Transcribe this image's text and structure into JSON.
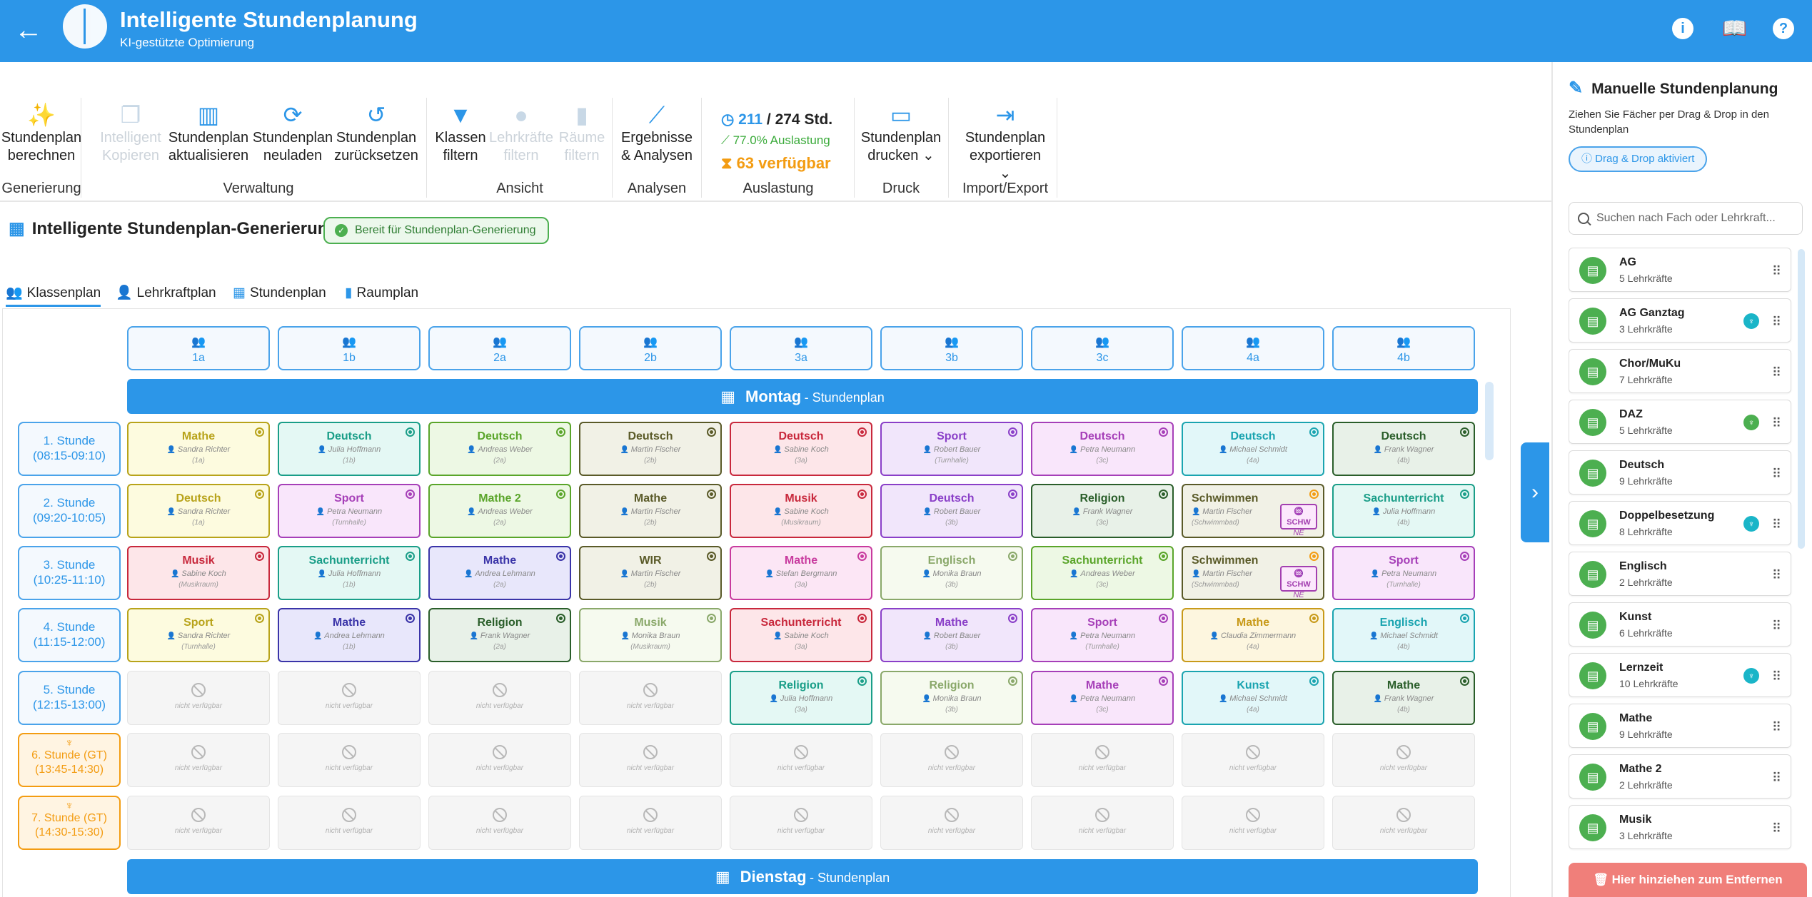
{
  "header": {
    "title": "Intelligente Stundenplanung",
    "subtitle": "KI-gestützte Optimierung"
  },
  "ribbon": {
    "buttons": [
      {
        "l1": "Stundenplan",
        "l2": "berechnen",
        "icon": "magic-wand-icon",
        "glyph": "✨",
        "disabled": false
      },
      {
        "l1": "Intelligent",
        "l2": "Kopieren",
        "icon": "copy-icon",
        "glyph": "❐",
        "disabled": true
      },
      {
        "l1": "Stundenplan",
        "l2": "aktualisieren",
        "icon": "columns-icon",
        "glyph": "▥",
        "disabled": false
      },
      {
        "l1": "Stundenplan",
        "l2": "neuladen",
        "icon": "sync-icon",
        "glyph": "⟳",
        "disabled": false
      },
      {
        "l1": "Stundenplan",
        "l2": "zurücksetzen",
        "icon": "undo-icon",
        "glyph": "↺",
        "disabled": false
      },
      {
        "l1": "Klassen",
        "l2": "filtern",
        "icon": "filter-icon",
        "glyph": "▼",
        "disabled": false
      },
      {
        "l1": "Lehrkräfte",
        "l2": "filtern",
        "icon": "person-icon",
        "glyph": "●",
        "disabled": true
      },
      {
        "l1": "Räume",
        "l2": "filtern",
        "icon": "door-icon",
        "glyph": "▮",
        "disabled": true
      },
      {
        "l1": "Ergebnisse",
        "l2": "& Analysen",
        "icon": "chart-line-icon",
        "glyph": "⟋",
        "disabled": false
      },
      {
        "l1": "Stundenplan",
        "l2": "drucken ⌄",
        "icon": "print-icon",
        "glyph": "▭",
        "disabled": false
      },
      {
        "l1": "Stundenplan",
        "l2": "exportieren ⌄",
        "icon": "export-icon",
        "glyph": "⇥",
        "disabled": false
      }
    ],
    "groups": [
      "Generierung",
      "Verwaltung",
      "Ansicht",
      "Analysen",
      "Auslastung",
      "Druck",
      "Import/Export"
    ],
    "stats": {
      "scheduled": "211",
      "total": "/ 274 Std.",
      "utilization": "77.0% Auslastung",
      "available": "63 verfügbar"
    }
  },
  "section": {
    "title": "Intelligente Stundenplan-Generierung",
    "status": "Bereit für Stundenplan-Generierung"
  },
  "tabs": [
    "Klassenplan",
    "Lehrkraftplan",
    "Stundenplan",
    "Raumplan"
  ],
  "classes": [
    "1a",
    "1b",
    "2a",
    "2b",
    "3a",
    "3b",
    "3c",
    "4a",
    "4b"
  ],
  "days": [
    {
      "name": "Montag",
      "suffix": "- Stundenplan"
    },
    {
      "name": "Dienstag",
      "suffix": "- Stundenplan"
    }
  ],
  "periods": [
    {
      "name": "1. Stunde",
      "time": "(08:15-09:10)",
      "gt": false
    },
    {
      "name": "2. Stunde",
      "time": "(09:20-10:05)",
      "gt": false
    },
    {
      "name": "3. Stunde",
      "time": "(10:25-11:10)",
      "gt": false
    },
    {
      "name": "4. Stunde",
      "time": "(11:15-12:00)",
      "gt": false
    },
    {
      "name": "5. Stunde",
      "time": "(12:15-13:00)",
      "gt": false
    },
    {
      "name": "6. Stunde (GT)",
      "time": "(13:45-14:30)",
      "gt": true
    },
    {
      "name": "7. Stunde (GT)",
      "time": "(14:30-15:30)",
      "gt": true
    }
  ],
  "na_label": "nicht verfügbar",
  "schedule": [
    [
      {
        "s": "Mathe",
        "t": "Sandra Richter",
        "r": "(1a)",
        "c": "#b8a31a",
        "bg": "#fdfbdf"
      },
      {
        "s": "Deutsch",
        "t": "Julia Hoffmann",
        "r": "(1b)",
        "c": "#1a9e88",
        "bg": "#e4f8f4"
      },
      {
        "s": "Deutsch",
        "t": "Andreas Weber",
        "r": "(2a)",
        "c": "#5aa52a",
        "bg": "#edf8e4"
      },
      {
        "s": "Deutsch",
        "t": "Martin Fischer",
        "r": "(2b)",
        "c": "#5a5a28",
        "bg": "#f1f1e6"
      },
      {
        "s": "Deutsch",
        "t": "Sabine Koch",
        "r": "(3a)",
        "c": "#c8283c",
        "bg": "#fde6e9"
      },
      {
        "s": "Sport",
        "t": "Robert Bauer",
        "r": "(Turnhalle)",
        "c": "#8a3fc8",
        "bg": "#f1e6fb"
      },
      {
        "s": "Deutsch",
        "t": "Petra Neumann",
        "r": "(3c)",
        "c": "#a63fb8",
        "bg": "#f9e6fb"
      },
      {
        "s": "Deutsch",
        "t": "Michael Schmidt",
        "r": "(4a)",
        "c": "#1aa4b0",
        "bg": "#e2f7f9"
      },
      {
        "s": "Deutsch",
        "t": "Frank Wagner",
        "r": "(4b)",
        "c": "#2a5e2a",
        "bg": "#e8f1e8"
      }
    ],
    [
      {
        "s": "Deutsch",
        "t": "Sandra Richter",
        "r": "(1a)",
        "c": "#b8a31a",
        "bg": "#fdfbdf"
      },
      {
        "s": "Sport",
        "t": "Petra Neumann",
        "r": "(Turnhalle)",
        "c": "#a63fb8",
        "bg": "#f9e6fb"
      },
      {
        "s": "Mathe 2",
        "t": "Andreas Weber",
        "r": "(2a)",
        "c": "#5aa52a",
        "bg": "#edf8e4"
      },
      {
        "s": "Mathe",
        "t": "Martin Fischer",
        "r": "(2b)",
        "c": "#5a5a28",
        "bg": "#f1f1e6"
      },
      {
        "s": "Musik",
        "t": "Sabine Koch",
        "r": "(Musikraum)",
        "c": "#c8283c",
        "bg": "#fde6e9"
      },
      {
        "s": "Deutsch",
        "t": "Robert Bauer",
        "r": "(3b)",
        "c": "#8a3fc8",
        "bg": "#f1e6fb"
      },
      {
        "s": "Religion",
        "t": "Frank Wagner",
        "r": "(3c)",
        "c": "#2a5e2a",
        "bg": "#e8f1e8"
      },
      {
        "s": "Schwimmen",
        "t": "Martin Fischer",
        "r": "(Schwimmbad)",
        "c": "#5a5a28",
        "bg": "#f1f1e6",
        "schw": true
      },
      {
        "s": "Sachunterricht",
        "t": "Julia Hoffmann",
        "r": "(4b)",
        "c": "#1a9e88",
        "bg": "#e4f8f4"
      }
    ],
    [
      {
        "s": "Musik",
        "t": "Sabine Koch",
        "r": "(Musikraum)",
        "c": "#c8283c",
        "bg": "#fde6e9"
      },
      {
        "s": "Sachunterricht",
        "t": "Julia Hoffmann",
        "r": "(1b)",
        "c": "#1a9e88",
        "bg": "#e4f8f4"
      },
      {
        "s": "Mathe",
        "t": "Andrea Lehmann",
        "r": "(2a)",
        "c": "#3a34a8",
        "bg": "#e8e7fb"
      },
      {
        "s": "WIR",
        "t": "Martin Fischer",
        "r": "(2b)",
        "c": "#5a5a28",
        "bg": "#f1f1e6"
      },
      {
        "s": "Mathe",
        "t": "Stefan Bergmann",
        "r": "(3a)",
        "c": "#c83a9e",
        "bg": "#fce6f5"
      },
      {
        "s": "Englisch",
        "t": "Monika Braun",
        "r": "(3b)",
        "c": "#8aa86a",
        "bg": "#f6faef"
      },
      {
        "s": "Sachunterricht",
        "t": "Andreas Weber",
        "r": "(3c)",
        "c": "#5aa52a",
        "bg": "#edf8e4"
      },
      {
        "s": "Schwimmen",
        "t": "Martin Fischer",
        "r": "(Schwimmbad)",
        "c": "#5a5a28",
        "bg": "#f1f1e6",
        "schw": true
      },
      {
        "s": "Sport",
        "t": "Petra Neumann",
        "r": "(Turnhalle)",
        "c": "#a63fb8",
        "bg": "#f9e6fb"
      }
    ],
    [
      {
        "s": "Sport",
        "t": "Sandra Richter",
        "r": "(Turnhalle)",
        "c": "#b8a31a",
        "bg": "#fdfbdf"
      },
      {
        "s": "Mathe",
        "t": "Andrea Lehmann",
        "r": "(1b)",
        "c": "#3a34a8",
        "bg": "#e8e7fb"
      },
      {
        "s": "Religion",
        "t": "Frank Wagner",
        "r": "(2a)",
        "c": "#2a5e2a",
        "bg": "#e8f1e8"
      },
      {
        "s": "Musik",
        "t": "Monika Braun",
        "r": "(Musikraum)",
        "c": "#8aa86a",
        "bg": "#f6faef"
      },
      {
        "s": "Sachunterricht",
        "t": "Sabine Koch",
        "r": "(3a)",
        "c": "#c8283c",
        "bg": "#fde6e9"
      },
      {
        "s": "Mathe",
        "t": "Robert Bauer",
        "r": "(3b)",
        "c": "#8a3fc8",
        "bg": "#f1e6fb"
      },
      {
        "s": "Sport",
        "t": "Petra Neumann",
        "r": "(Turnhalle)",
        "c": "#a63fb8",
        "bg": "#f9e6fb"
      },
      {
        "s": "Mathe",
        "t": "Claudia Zimmermann",
        "r": "(4a)",
        "c": "#c89a1a",
        "bg": "#fdf6df"
      },
      {
        "s": "Englisch",
        "t": "Michael Schmidt",
        "r": "(4b)",
        "c": "#1aa4b0",
        "bg": "#e2f7f9"
      }
    ],
    [
      null,
      null,
      null,
      null,
      {
        "s": "Religion",
        "t": "Julia Hoffmann",
        "r": "(3a)",
        "c": "#1a9e88",
        "bg": "#e4f8f4"
      },
      {
        "s": "Religion",
        "t": "Monika Braun",
        "r": "(3b)",
        "c": "#8aa86a",
        "bg": "#f6faef"
      },
      {
        "s": "Mathe",
        "t": "Petra Neumann",
        "r": "(3c)",
        "c": "#a63fb8",
        "bg": "#f9e6fb"
      },
      {
        "s": "Kunst",
        "t": "Michael Schmidt",
        "r": "(4a)",
        "c": "#1aa4b0",
        "bg": "#e2f7f9"
      },
      {
        "s": "Mathe",
        "t": "Frank Wagner",
        "r": "(4b)",
        "c": "#2a5e2a",
        "bg": "#e8f1e8"
      }
    ],
    [
      null,
      null,
      null,
      null,
      null,
      null,
      null,
      null,
      null
    ],
    [
      null,
      null,
      null,
      null,
      null,
      null,
      null,
      null,
      null
    ]
  ],
  "schw_badge": {
    "label": "SCHW",
    "sub": "NE"
  },
  "sidebar": {
    "title": "Manuelle Stundenplanung",
    "description": "Ziehen Sie Fächer per Drag & Drop in den Stundenplan",
    "dragdrop": "Drag & Drop aktiviert",
    "search_placeholder": "Suchen nach Fach oder Lehrkraft...",
    "subjects": [
      {
        "name": "AG",
        "count": "5 Lehrkräfte",
        "badge": null
      },
      {
        "name": "AG Ganztag",
        "count": "3 Lehrkräfte",
        "badge": "#1ab5c8"
      },
      {
        "name": "Chor/MuKu",
        "count": "7 Lehrkräfte",
        "badge": null
      },
      {
        "name": "DAZ",
        "count": "5 Lehrkräfte",
        "badge": "#4caf50"
      },
      {
        "name": "Deutsch",
        "count": "9 Lehrkräfte",
        "badge": null
      },
      {
        "name": "Doppelbesetzung",
        "count": "8 Lehrkräfte",
        "badge": "#1ab5c8"
      },
      {
        "name": "Englisch",
        "count": "2 Lehrkräfte",
        "badge": null
      },
      {
        "name": "Kunst",
        "count": "6 Lehrkräfte",
        "badge": null
      },
      {
        "name": "Lernzeit",
        "count": "10 Lehrkräfte",
        "badge": "#1ab5c8"
      },
      {
        "name": "Mathe",
        "count": "9 Lehrkräfte",
        "badge": null
      },
      {
        "name": "Mathe 2",
        "count": "2 Lehrkräfte",
        "badge": null
      },
      {
        "name": "Musik",
        "count": "3 Lehrkräfte",
        "badge": null
      }
    ],
    "remove_label": "Hier hinziehen zum Entfernen"
  }
}
